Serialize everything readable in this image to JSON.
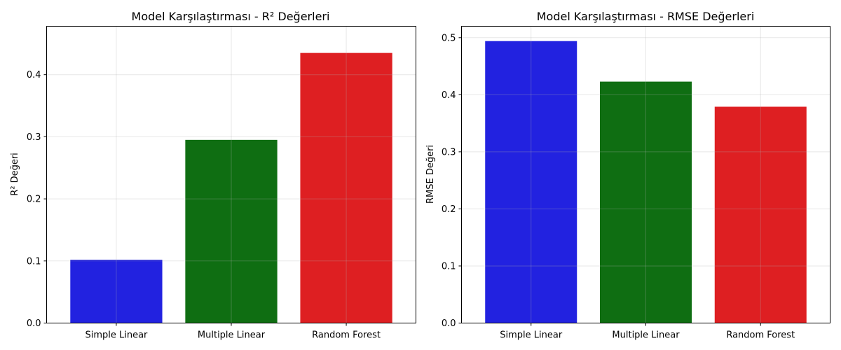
{
  "chart_data": [
    {
      "type": "bar",
      "title": "Model Karşılaştırması - R² Değerleri",
      "xlabel": "",
      "ylabel": "R² Değeri",
      "categories": [
        "Simple Linear",
        "Multiple Linear",
        "Random Forest"
      ],
      "values": [
        0.102,
        0.295,
        0.435
      ],
      "colors": [
        "#2222e0",
        "#0f6e12",
        "#de1f22"
      ],
      "ylim": [
        0,
        0.478
      ],
      "yticks": [
        0.0,
        0.1,
        0.2,
        0.3,
        0.4
      ],
      "ytick_labels": [
        "0.0",
        "0.1",
        "0.2",
        "0.3",
        "0.4"
      ],
      "grid": true
    },
    {
      "type": "bar",
      "title": "Model Karşılaştırması - RMSE Değerleri",
      "xlabel": "",
      "ylabel": "RMSE Değeri",
      "categories": [
        "Simple Linear",
        "Multiple Linear",
        "Random Forest"
      ],
      "values": [
        0.494,
        0.423,
        0.379
      ],
      "colors": [
        "#2222e0",
        "#0f6e12",
        "#de1f22"
      ],
      "ylim": [
        0,
        0.52
      ],
      "yticks": [
        0.0,
        0.1,
        0.2,
        0.3,
        0.4,
        0.5
      ],
      "ytick_labels": [
        "0.0",
        "0.1",
        "0.2",
        "0.3",
        "0.4",
        "0.5"
      ],
      "grid": true
    }
  ]
}
